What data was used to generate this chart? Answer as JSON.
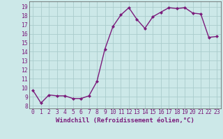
{
  "x": [
    0,
    1,
    2,
    3,
    4,
    5,
    6,
    7,
    8,
    9,
    10,
    11,
    12,
    13,
    14,
    15,
    16,
    17,
    18,
    19,
    20,
    21,
    22,
    23
  ],
  "y": [
    9.7,
    8.3,
    9.2,
    9.1,
    9.1,
    8.8,
    8.8,
    9.1,
    10.7,
    14.3,
    16.8,
    18.1,
    18.9,
    17.6,
    16.6,
    17.9,
    18.4,
    18.9,
    18.8,
    18.9,
    18.3,
    18.2,
    15.6,
    15.7
  ],
  "line_color": "#7B1B7B",
  "marker": "D",
  "marker_size": 2.0,
  "line_width": 1.0,
  "bg_color": "#cce8e8",
  "grid_color": "#aacccc",
  "xlabel": "Windchill (Refroidissement éolien,°C)",
  "xlabel_fontsize": 6.5,
  "tick_color": "#7B1B7B",
  "yticks": [
    8,
    9,
    10,
    11,
    12,
    13,
    14,
    15,
    16,
    17,
    18,
    19
  ],
  "xticks": [
    0,
    1,
    2,
    3,
    4,
    5,
    6,
    7,
    8,
    9,
    10,
    11,
    12,
    13,
    14,
    15,
    16,
    17,
    18,
    19,
    20,
    21,
    22,
    23
  ],
  "ylim": [
    7.7,
    19.6
  ],
  "xlim": [
    -0.5,
    23.5
  ],
  "tick_fontsize": 5.8
}
